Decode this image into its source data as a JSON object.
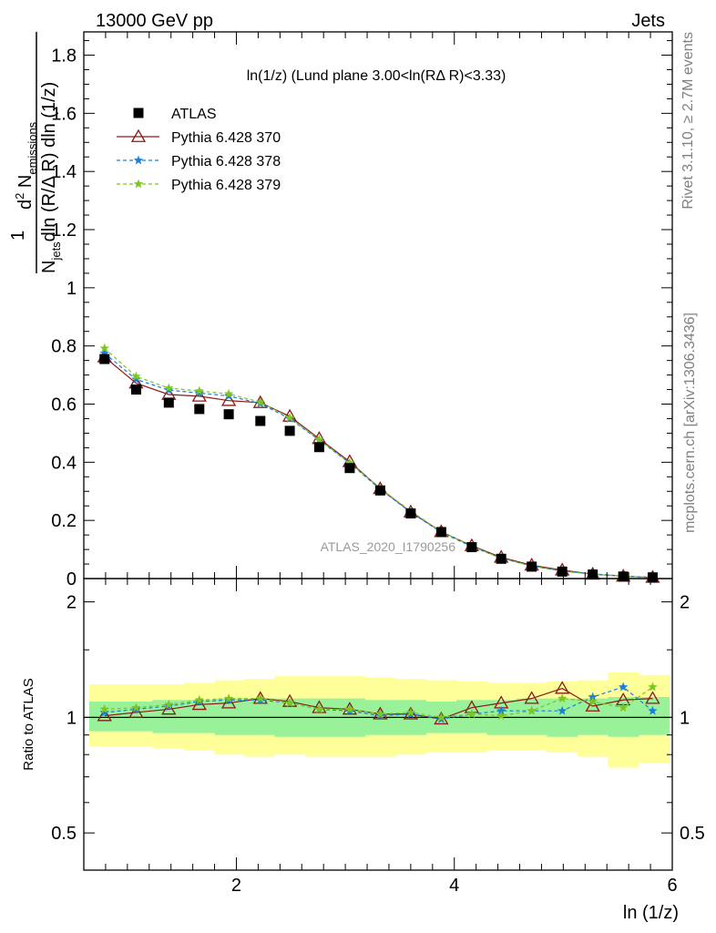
{
  "header": {
    "left": "13000 GeV pp",
    "right": "Jets"
  },
  "side_labels": {
    "top": "Rivet 3.1.10, ≥ 2.7M events",
    "bottom": "mcplots.cern.ch [arXiv:1306.3436]"
  },
  "watermark": "ATLAS_2020_I1790256",
  "chart_data": [
    {
      "type": "scatter",
      "panel": "main",
      "title": "ln(1/z) (Lund plane 3.00<ln(RΔ R)<3.33)",
      "ylabel_parts": {
        "numerator_top": "1",
        "numerator_d": "d",
        "numerator_sup": "2",
        "numerator_N": "N",
        "numerator_sub": "emissions",
        "denominator_N": "N",
        "denominator_sub": "jets",
        "denominator_rest": "dln (R/Δ R) dln (1/z)"
      },
      "xlabel": "ln (1/z)",
      "xlim": [
        0.6,
        6.0
      ],
      "ylim": [
        0.0,
        1.88
      ],
      "y_ticks": [
        0,
        0.2,
        0.4,
        0.6,
        0.8,
        1,
        1.2,
        1.4,
        1.6,
        1.8
      ],
      "y_tick_labels": [
        "0",
        "0.2",
        "0.4",
        "0.6",
        "0.8",
        "1",
        "1.2",
        "1.4",
        "1.6",
        "1.8"
      ],
      "x": [
        0.79,
        1.08,
        1.38,
        1.66,
        1.93,
        2.22,
        2.49,
        2.76,
        3.04,
        3.32,
        3.6,
        3.88,
        4.16,
        4.43,
        4.71,
        4.99,
        5.27,
        5.55,
        5.82
      ],
      "series": [
        {
          "name": "ATLAS",
          "color": "#000000",
          "marker": "square",
          "values": [
            0.755,
            0.65,
            0.605,
            0.583,
            0.565,
            0.542,
            0.508,
            0.452,
            0.38,
            0.303,
            0.224,
            0.16,
            0.108,
            0.068,
            0.041,
            0.024,
            0.014,
            0.007,
            0.004
          ]
        },
        {
          "name": "Pythia 6.428 370",
          "color": "#8b1a1a",
          "marker": "triangle-open",
          "line": "solid",
          "values": [
            0.762,
            0.672,
            0.633,
            0.627,
            0.612,
            0.605,
            0.558,
            0.481,
            0.402,
            0.309,
            0.229,
            0.161,
            0.113,
            0.073,
            0.046,
            0.029,
            0.015,
            0.008,
            0.004
          ]
        },
        {
          "name": "Pythia 6.428 378",
          "color": "#1a7fd9",
          "marker": "star",
          "line": "dashed",
          "values": [
            0.775,
            0.685,
            0.648,
            0.638,
            0.628,
            0.602,
            0.55,
            0.476,
            0.397,
            0.307,
            0.228,
            0.159,
            0.11,
            0.07,
            0.043,
            0.026,
            0.016,
            0.009,
            0.004
          ]
        },
        {
          "name": "Pythia 6.428 379",
          "color": "#7dc51f",
          "marker": "star",
          "line": "dashed",
          "values": [
            0.792,
            0.695,
            0.655,
            0.645,
            0.635,
            0.607,
            0.553,
            0.478,
            0.398,
            0.31,
            0.232,
            0.162,
            0.111,
            0.07,
            0.043,
            0.025,
            0.015,
            0.008,
            0.004
          ]
        }
      ],
      "legend_position": "top-left"
    },
    {
      "type": "scatter",
      "panel": "ratio",
      "ylabel": "Ratio to ATLAS",
      "xlabel": "ln (1/z)",
      "xlim": [
        0.6,
        6.0
      ],
      "ylim": [
        0.4,
        2.3
      ],
      "log_y": true,
      "y_ticks": [
        0.5,
        1,
        2
      ],
      "y_tick_labels": [
        "0.5",
        "1",
        "2"
      ],
      "x_ticks": [
        2,
        4,
        6
      ],
      "x_tick_labels": [
        "2",
        "4",
        "6"
      ],
      "bin_edges": [
        0.65,
        0.93,
        1.23,
        1.52,
        1.8,
        2.07,
        2.35,
        2.63,
        2.9,
        3.18,
        3.46,
        3.74,
        4.02,
        4.3,
        4.57,
        4.85,
        5.13,
        5.41,
        5.69,
        5.97
      ],
      "band_inner": {
        "color": "#99f299",
        "low": [
          0.92,
          0.92,
          0.91,
          0.91,
          0.9,
          0.9,
          0.89,
          0.89,
          0.89,
          0.9,
          0.9,
          0.91,
          0.91,
          0.9,
          0.9,
          0.89,
          0.9,
          0.89,
          0.9
        ],
        "high": [
          1.1,
          1.1,
          1.11,
          1.11,
          1.12,
          1.12,
          1.12,
          1.12,
          1.12,
          1.11,
          1.11,
          1.1,
          1.11,
          1.11,
          1.12,
          1.12,
          1.12,
          1.13,
          1.13
        ]
      },
      "band_outer": {
        "color": "#ffff99",
        "low": [
          0.84,
          0.84,
          0.83,
          0.82,
          0.8,
          0.79,
          0.8,
          0.79,
          0.79,
          0.79,
          0.8,
          0.81,
          0.81,
          0.82,
          0.82,
          0.81,
          0.79,
          0.74,
          0.76
        ],
        "high": [
          1.22,
          1.22,
          1.22,
          1.23,
          1.25,
          1.26,
          1.28,
          1.28,
          1.28,
          1.27,
          1.26,
          1.25,
          1.24,
          1.23,
          1.23,
          1.24,
          1.25,
          1.31,
          1.29
        ]
      },
      "x": [
        0.79,
        1.08,
        1.38,
        1.66,
        1.93,
        2.22,
        2.49,
        2.76,
        3.04,
        3.32,
        3.6,
        3.88,
        4.16,
        4.43,
        4.71,
        4.99,
        5.27,
        5.55,
        5.82
      ],
      "series": [
        {
          "name": "Pythia 6.428 370",
          "color": "#8b1a1a",
          "marker": "triangle-open",
          "line": "solid",
          "values": [
            1.01,
            1.03,
            1.05,
            1.08,
            1.09,
            1.12,
            1.1,
            1.06,
            1.05,
            1.02,
            1.02,
            0.99,
            1.06,
            1.09,
            1.12,
            1.19,
            1.07,
            1.11,
            1.12
          ]
        },
        {
          "name": "Pythia 6.428 378",
          "color": "#1a7fd9",
          "marker": "star",
          "line": "dashed",
          "values": [
            1.03,
            1.05,
            1.07,
            1.1,
            1.11,
            1.11,
            1.09,
            1.05,
            1.04,
            1.01,
            1.02,
            0.99,
            1.02,
            1.04,
            1.04,
            1.04,
            1.13,
            1.2,
            1.04
          ]
        },
        {
          "name": "Pythia 6.428 379",
          "color": "#7dc51f",
          "marker": "star",
          "line": "dashed",
          "values": [
            1.05,
            1.06,
            1.08,
            1.11,
            1.12,
            1.12,
            1.09,
            1.05,
            1.05,
            1.02,
            1.03,
            1.0,
            1.02,
            1.01,
            1.04,
            1.12,
            1.1,
            1.06,
            1.2
          ]
        }
      ]
    }
  ]
}
